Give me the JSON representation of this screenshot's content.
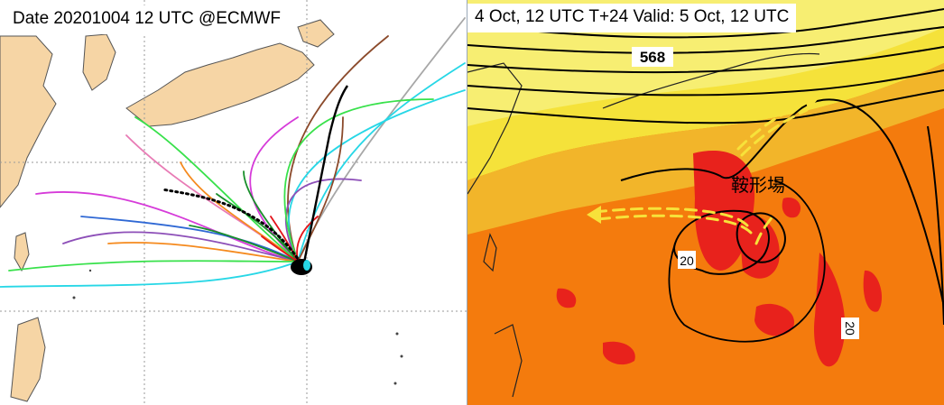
{
  "left_panel": {
    "caption": "Date 20201004 12 UTC @ECMWF",
    "colors": {
      "land": "#f6d5a5",
      "ocean": "#ffffff",
      "grid": "#9a9a9a",
      "mean_track": "#000000",
      "ensemble": [
        "#e4141b",
        "#1a8f2c",
        "#f58a1e",
        "#8d4fb8",
        "#d63bd9",
        "#27d7e6",
        "#38e14b",
        "#8b4a2b",
        "#a7a7a7",
        "#2f68d4",
        "#e87bb5"
      ]
    }
  },
  "right_panel": {
    "caption": "4 Oct, 12 UTC T+24 Valid: 5 Oct, 12 UTC",
    "contour_labels": {
      "geopotential": "568",
      "isotherm_a": "20",
      "isotherm_b": "20"
    },
    "annotation": "鞍形場",
    "colors": {
      "yellow": "#f5e23a",
      "pale_yellow": "#f7ee72",
      "amber": "#f2b52a",
      "orange": "#f47b0d",
      "red": "#e8221c",
      "arrow": "#f7e23a",
      "contour": "#000000"
    }
  }
}
